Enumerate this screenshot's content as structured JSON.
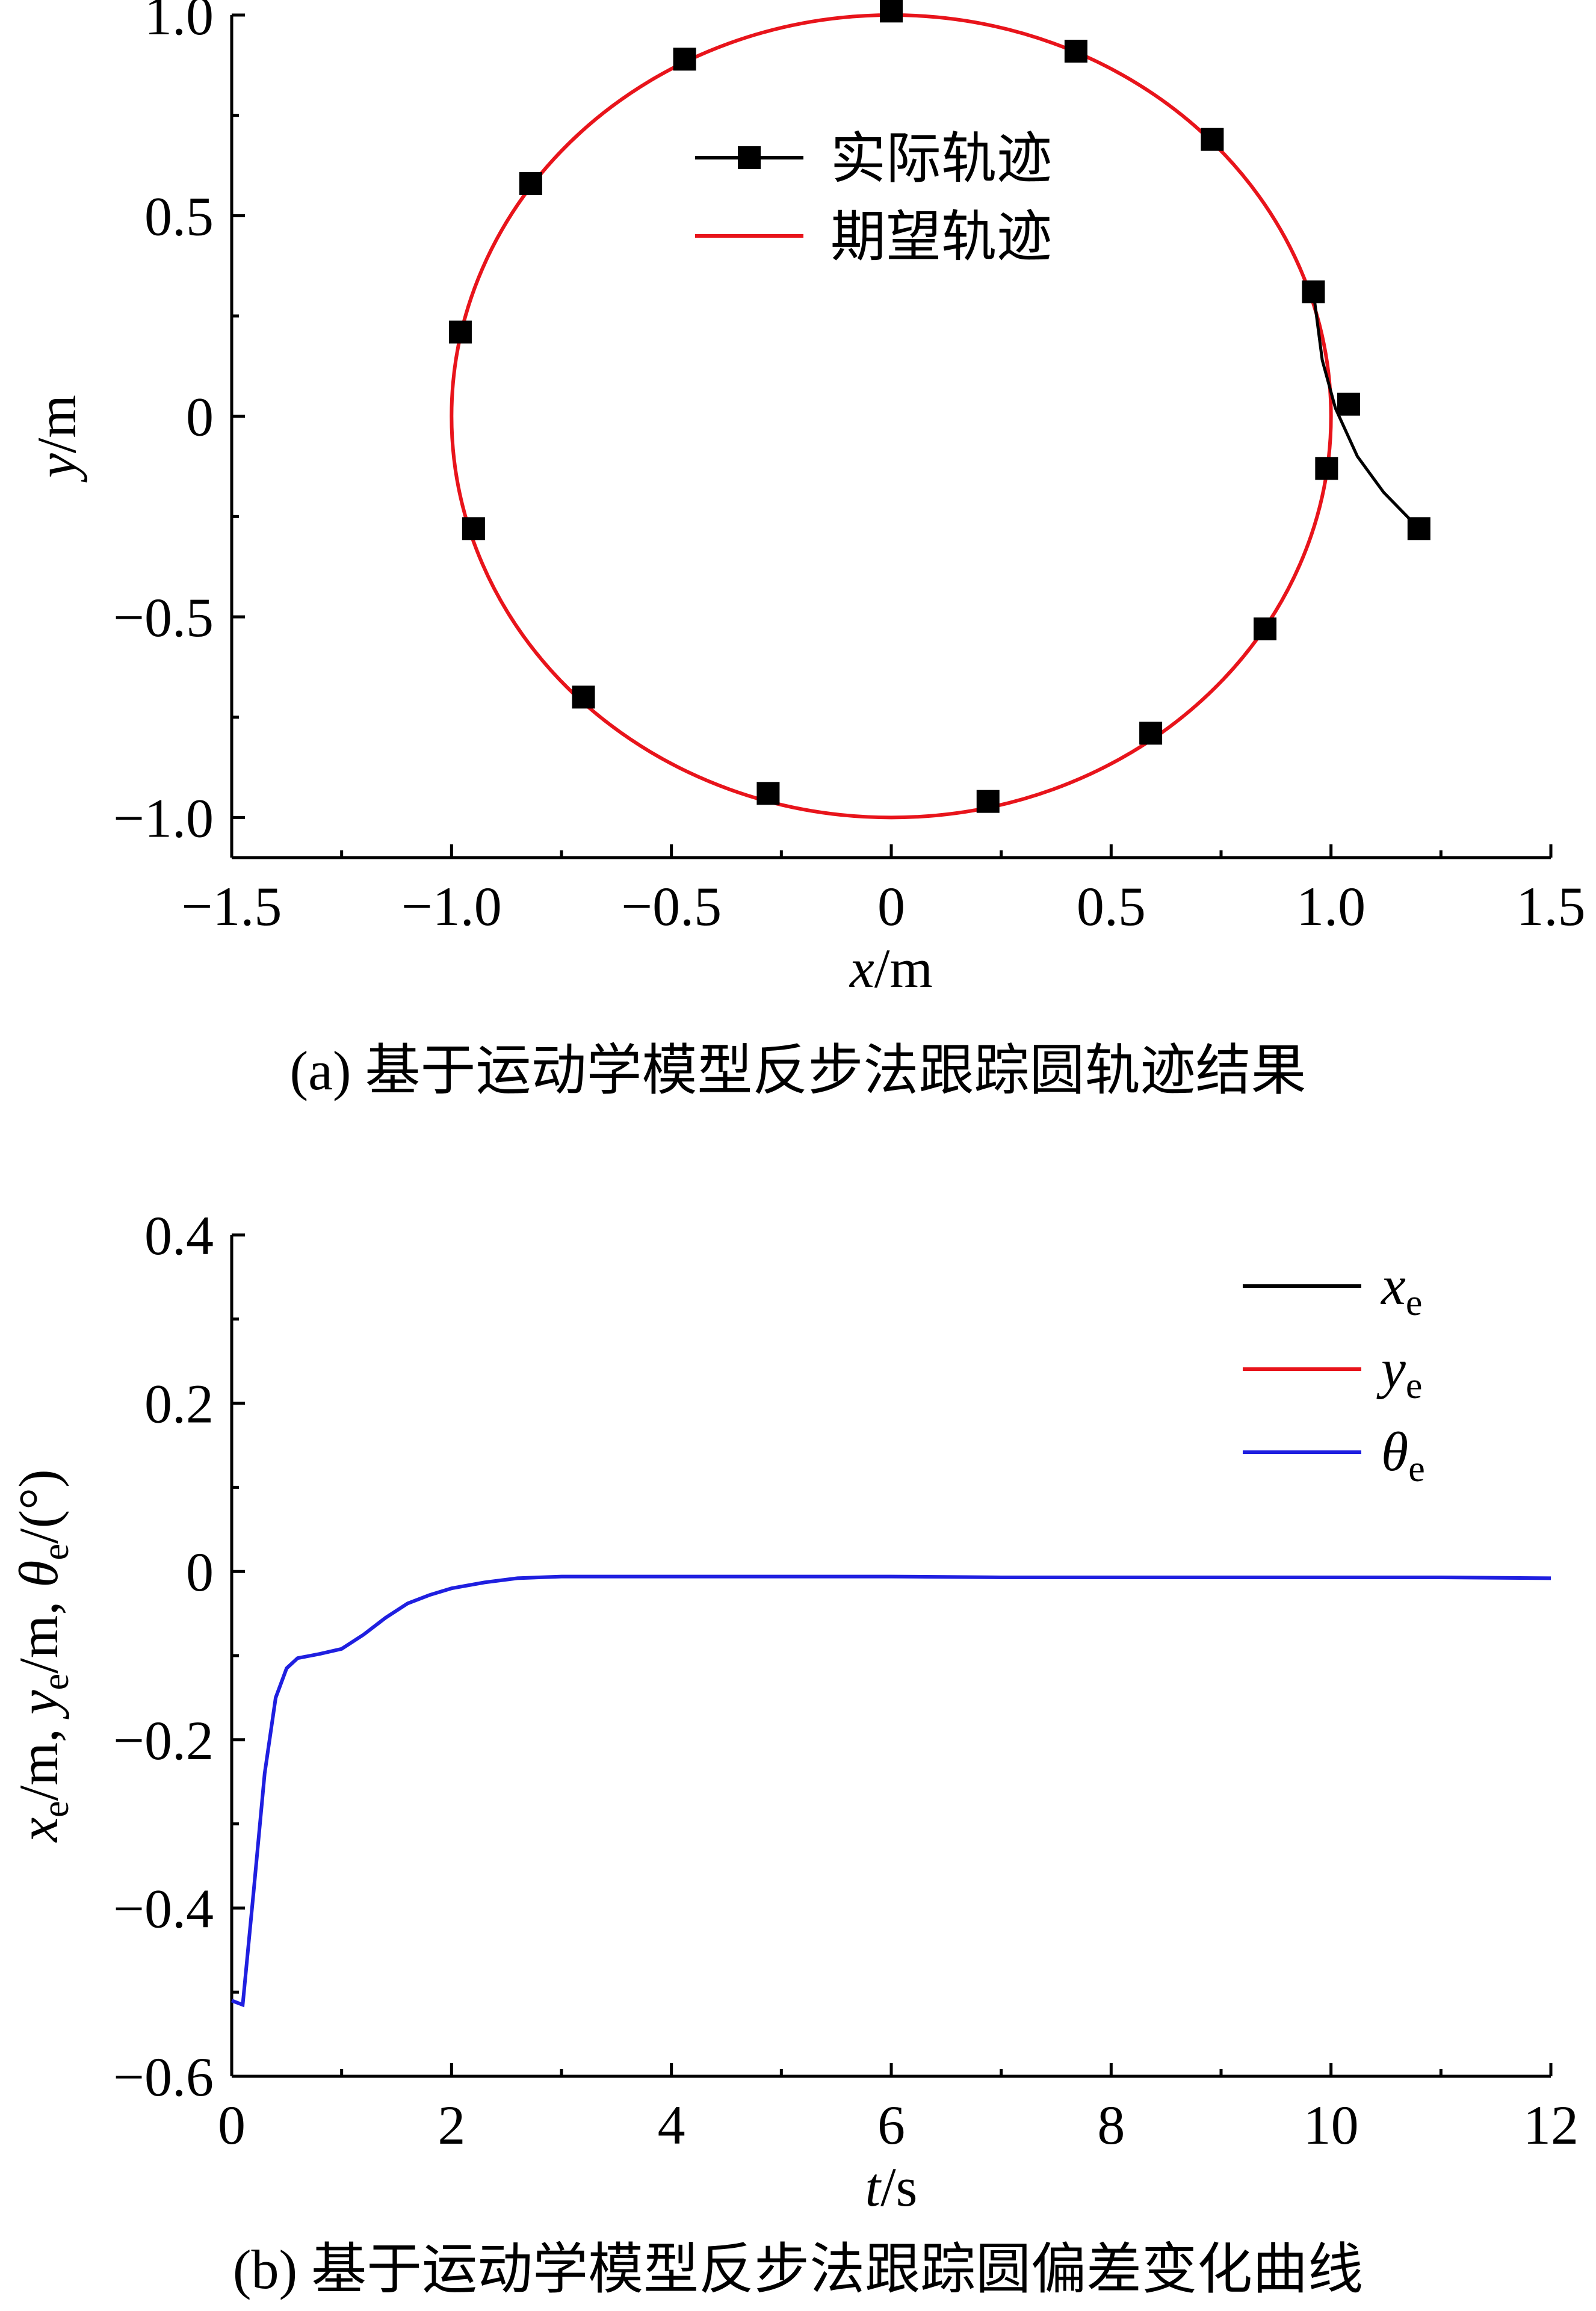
{
  "chart_data": [
    {
      "type": "line",
      "panel_caption": "(a) 基于运动学模型反步法跟踪圆轨迹结果",
      "xlabel": {
        "var": "x",
        "unit": "/m"
      },
      "ylabel": {
        "var": "y",
        "unit": "/m"
      },
      "xlim": [
        -1.5,
        1.5
      ],
      "ylim": [
        -1.1,
        1.0
      ],
      "xticks": [
        -1.5,
        -1.0,
        -0.5,
        0,
        0.5,
        1.0,
        1.5
      ],
      "xtick_labels": [
        "−1.5",
        "−1.0",
        "−0.5",
        "0",
        "0.5",
        "1.0",
        "1.5"
      ],
      "yticks": [
        -1.0,
        -0.5,
        0,
        0.5,
        1.0
      ],
      "ytick_labels": [
        "−1.0",
        "−0.5",
        "0",
        "0.5",
        "1.0"
      ],
      "legend_position": "top-center",
      "series": [
        {
          "name": "实际轨迹",
          "color": "#000000",
          "marker": "square",
          "marker_points": [
            [
              1.2,
              -0.28
            ],
            [
              0.99,
              -0.13
            ],
            [
              1.04,
              0.03
            ],
            [
              0.96,
              0.31
            ],
            [
              0.73,
              0.69
            ],
            [
              0.42,
              0.91
            ],
            [
              0.0,
              1.01
            ],
            [
              -0.47,
              0.89
            ],
            [
              -0.82,
              0.58
            ],
            [
              -0.98,
              0.21
            ],
            [
              -0.95,
              -0.28
            ],
            [
              -0.7,
              -0.7
            ],
            [
              -0.28,
              -0.94
            ],
            [
              0.22,
              -0.96
            ],
            [
              0.59,
              -0.79
            ],
            [
              0.85,
              -0.53
            ]
          ],
          "transient_path": [
            [
              1.2,
              -0.28
            ],
            [
              1.12,
              -0.19
            ],
            [
              1.06,
              -0.1
            ],
            [
              1.01,
              0.02
            ],
            [
              0.98,
              0.14
            ],
            [
              0.96,
              0.31
            ]
          ]
        },
        {
          "name": "期望轨迹",
          "color": "#e8141b",
          "shape": "circle",
          "center": [
            0,
            0
          ],
          "radius": 1.0
        }
      ]
    },
    {
      "type": "line",
      "panel_caption": "(b) 基于运动学模型反步法跟踪圆偏差变化曲线",
      "xlabel": {
        "var": "t",
        "unit": "/s"
      },
      "ylabel": {
        "parts": [
          "x",
          "e",
          "/m, ",
          "y",
          "e",
          "/m, ",
          "θ",
          "e",
          "/(°)"
        ]
      },
      "xlim": [
        0,
        12
      ],
      "ylim": [
        -0.6,
        0.4
      ],
      "xticks": [
        0,
        2,
        4,
        6,
        8,
        10,
        12
      ],
      "xtick_labels": [
        "0",
        "2",
        "4",
        "6",
        "8",
        "10",
        "12"
      ],
      "yticks": [
        -0.6,
        -0.4,
        -0.2,
        0,
        0.2,
        0.4
      ],
      "ytick_labels": [
        "−0.6",
        "−0.4",
        "−0.2",
        "0",
        "0.2",
        "0.4"
      ],
      "legend_position": "top-right",
      "series": [
        {
          "name": "x",
          "subscript": "e",
          "color": "#000000",
          "points": []
        },
        {
          "name": "y",
          "subscript": "e",
          "color": "#e8141b",
          "points": []
        },
        {
          "name": "θ",
          "subscript": "e",
          "color": "#1f1fe0",
          "points": [
            [
              0,
              -0.51
            ],
            [
              0.1,
              -0.515
            ],
            [
              0.2,
              -0.38
            ],
            [
              0.3,
              -0.24
            ],
            [
              0.4,
              -0.15
            ],
            [
              0.5,
              -0.115
            ],
            [
              0.6,
              -0.103
            ],
            [
              0.8,
              -0.098
            ],
            [
              1.0,
              -0.092
            ],
            [
              1.2,
              -0.075
            ],
            [
              1.4,
              -0.055
            ],
            [
              1.6,
              -0.038
            ],
            [
              1.8,
              -0.028
            ],
            [
              2.0,
              -0.02
            ],
            [
              2.3,
              -0.013
            ],
            [
              2.6,
              -0.008
            ],
            [
              3.0,
              -0.006
            ],
            [
              4.0,
              -0.006
            ],
            [
              5.0,
              -0.006
            ],
            [
              6.0,
              -0.006
            ],
            [
              7.0,
              -0.007
            ],
            [
              8.0,
              -0.007
            ],
            [
              9.0,
              -0.007
            ],
            [
              10.0,
              -0.007
            ],
            [
              11.0,
              -0.007
            ],
            [
              12.0,
              -0.008
            ]
          ]
        }
      ]
    }
  ]
}
